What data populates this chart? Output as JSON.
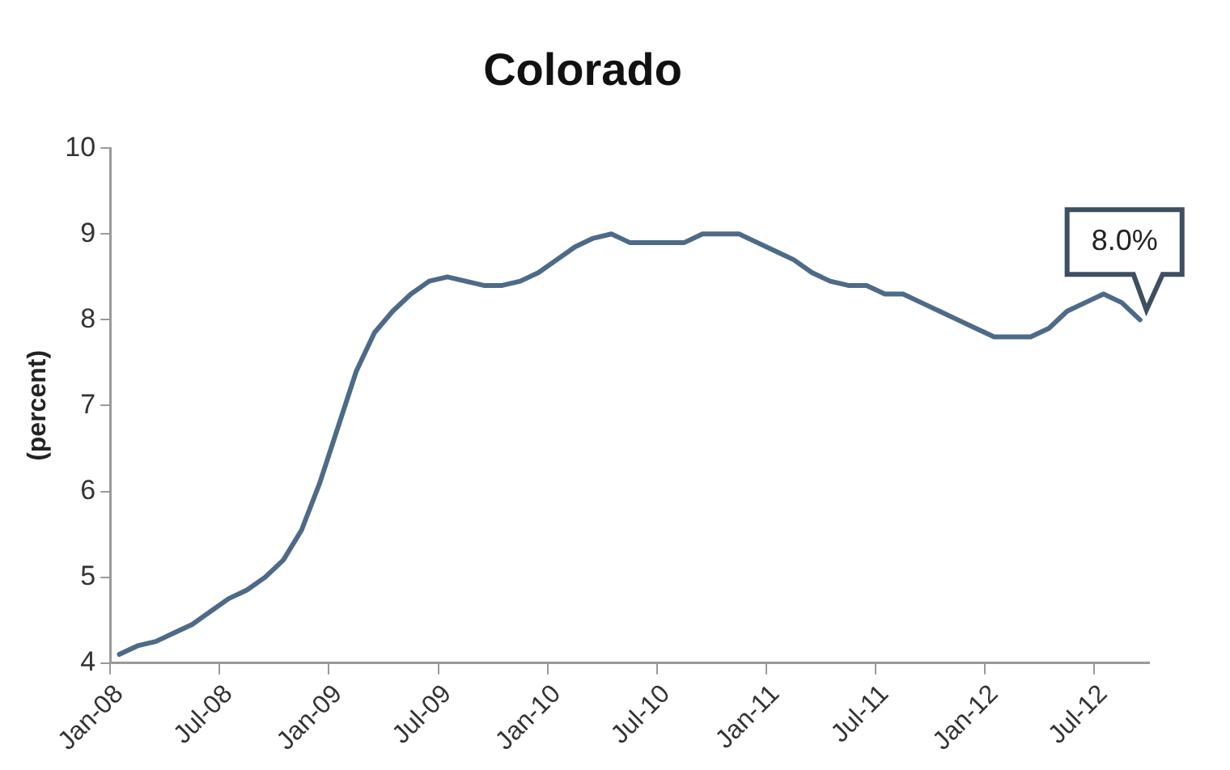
{
  "chart_data": {
    "type": "line",
    "title": "Colorado",
    "ylabel": "(percent)",
    "categories": [
      "Jan-08",
      null,
      null,
      null,
      null,
      null,
      "Jul-08",
      null,
      null,
      null,
      null,
      null,
      "Jan-09",
      null,
      null,
      null,
      null,
      null,
      "Jul-09",
      null,
      null,
      null,
      null,
      null,
      "Jan-10",
      null,
      null,
      null,
      null,
      null,
      "Jul-10",
      null,
      null,
      null,
      null,
      null,
      "Jan-11",
      null,
      null,
      null,
      null,
      null,
      "Jul-11",
      null,
      null,
      null,
      null,
      null,
      "Jan-12",
      null,
      null,
      null,
      null,
      null,
      "Jul-12",
      null,
      null
    ],
    "series": [
      {
        "color": "#4d6b88",
        "values": [
          4.1,
          4.2,
          4.25,
          4.35,
          4.45,
          4.6,
          4.75,
          4.85,
          5.0,
          5.2,
          5.55,
          6.1,
          6.75,
          7.4,
          7.85,
          8.1,
          8.3,
          8.45,
          8.5,
          8.45,
          8.4,
          8.4,
          8.45,
          8.55,
          8.7,
          8.85,
          8.95,
          9.0,
          8.9,
          8.9,
          8.9,
          8.9,
          9.0,
          9.0,
          9.0,
          8.9,
          8.8,
          8.7,
          8.55,
          8.45,
          8.4,
          8.4,
          8.3,
          8.3,
          8.2,
          8.1,
          8.0,
          7.9,
          7.8,
          7.8,
          7.8,
          7.9,
          8.1,
          8.2,
          8.3,
          8.2,
          8.0
        ],
        "value_labels": [
          null,
          null,
          null,
          null,
          null,
          null,
          null,
          null,
          null,
          null,
          null,
          null,
          null,
          null,
          null,
          null,
          null,
          null,
          null,
          null,
          null,
          null,
          null,
          null,
          null,
          null,
          null,
          null,
          null,
          null,
          null,
          null,
          null,
          null,
          null,
          null,
          null,
          null,
          null,
          null,
          null,
          null,
          null,
          null,
          null,
          null,
          null,
          null,
          null,
          null,
          null,
          null,
          null,
          null,
          null,
          null,
          "8.0%"
        ]
      }
    ],
    "ylim": [
      4,
      10
    ],
    "yticks": [
      4,
      5,
      6,
      7,
      8,
      9,
      10
    ],
    "grid": false,
    "legend": false,
    "marker": "none",
    "line_style": "solid"
  }
}
